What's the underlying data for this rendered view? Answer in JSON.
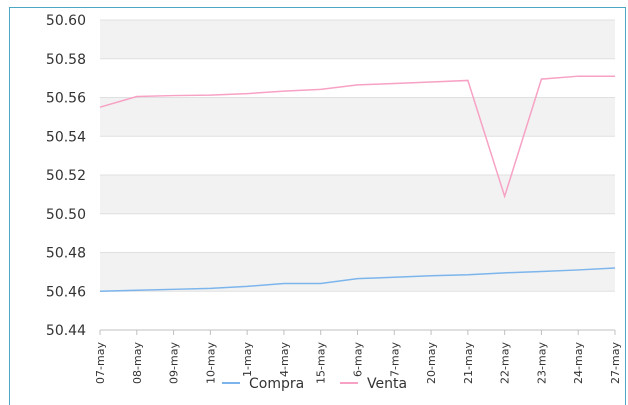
{
  "chart_data": {
    "type": "line",
    "categories": [
      "07-may",
      "08-may",
      "09-may",
      "10-may",
      "11-may",
      "14-may",
      "15-may",
      "16-may",
      "17-may",
      "20-may",
      "21-may",
      "22-may",
      "23-may",
      "24-may",
      "27-may"
    ],
    "y_ticks": [
      "50.60",
      "50.58",
      "50.56",
      "50.54",
      "50.52",
      "50.50",
      "50.48",
      "50.46",
      "50.44"
    ],
    "ylim": [
      50.44,
      50.6
    ],
    "grid": true,
    "band_color": "#f2f2f2",
    "series": [
      {
        "name": "Compra",
        "color": "#7cb5ec",
        "values": [
          50.46,
          50.4605,
          50.461,
          50.4615,
          50.4625,
          50.464,
          50.464,
          50.4665,
          50.4672,
          50.468,
          50.4685,
          50.4695,
          50.4702,
          50.471,
          50.472
        ]
      },
      {
        "name": "Venta",
        "color": "#f7a1c4",
        "values": [
          50.555,
          50.5605,
          50.561,
          50.5612,
          50.562,
          50.5633,
          50.5642,
          50.5665,
          50.5672,
          50.568,
          50.5688,
          50.509,
          50.5695,
          50.571,
          50.571
        ]
      }
    ],
    "legend": {
      "placement": "bottom-center"
    }
  }
}
